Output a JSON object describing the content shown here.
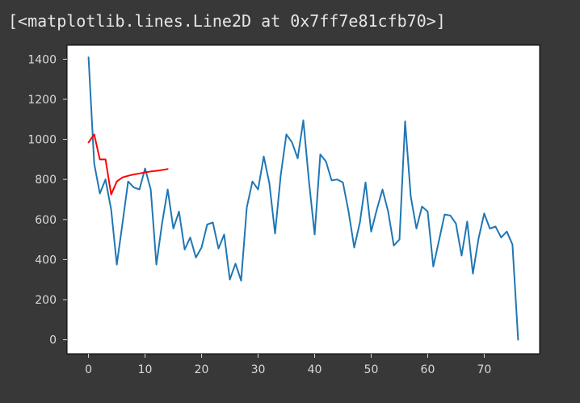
{
  "cell_output": {
    "text": "[<matplotlib.lines.Line2D at 0x7ff7e81cfb70>]"
  },
  "colors": {
    "page_background": "#383838",
    "plot_background": "#ffffff",
    "series_main": "#1f77b4",
    "series_overlay": "#ff0000",
    "tick_label": "#d9d9d9"
  },
  "chart_data": {
    "type": "line",
    "title": "",
    "xlabel": "",
    "ylabel": "",
    "xlim": [
      -3.8,
      79.8
    ],
    "ylim": [
      -70,
      1470
    ],
    "grid": false,
    "legend": "none",
    "xticks": [
      0,
      10,
      20,
      30,
      40,
      50,
      60,
      70
    ],
    "xtick_labels": [
      "0",
      "10",
      "20",
      "30",
      "40",
      "50",
      "60",
      "70"
    ],
    "yticks": [
      0,
      200,
      400,
      600,
      800,
      1000,
      1200,
      1400
    ],
    "ytick_labels": [
      "0",
      "200",
      "400",
      "600",
      "800",
      "1000",
      "1200",
      "1400"
    ],
    "series": [
      {
        "color": "#1f77b4",
        "x": [
          0,
          1,
          2,
          3,
          4,
          5,
          6,
          7,
          8,
          9,
          10,
          11,
          12,
          13,
          14,
          15,
          16,
          17,
          18,
          19,
          20,
          21,
          22,
          23,
          24,
          25,
          26,
          27,
          28,
          29,
          30,
          31,
          32,
          33,
          34,
          35,
          36,
          37,
          38,
          39,
          40,
          41,
          42,
          43,
          44,
          45,
          46,
          47,
          48,
          49,
          50,
          51,
          52,
          53,
          54,
          55,
          56,
          57,
          58,
          59,
          60,
          61,
          62,
          63,
          64,
          65,
          66,
          67,
          68,
          69,
          70,
          71,
          72,
          73,
          74,
          75,
          76
        ],
        "y": [
          1410,
          880,
          730,
          800,
          650,
          375,
          580,
          790,
          760,
          750,
          855,
          750,
          375,
          580,
          750,
          555,
          640,
          450,
          510,
          410,
          460,
          575,
          585,
          455,
          525,
          300,
          380,
          295,
          660,
          790,
          750,
          915,
          780,
          530,
          820,
          1025,
          985,
          905,
          1095,
          790,
          525,
          925,
          890,
          795,
          800,
          785,
          640,
          460,
          585,
          785,
          540,
          650,
          750,
          640,
          470,
          500,
          1090,
          715,
          555,
          665,
          640,
          365,
          495,
          625,
          620,
          580,
          420,
          590,
          330,
          505,
          630,
          555,
          565,
          510,
          540,
          475,
          0
        ]
      },
      {
        "color": "#ff0000",
        "x": [
          0,
          1,
          2,
          3,
          4,
          5,
          6,
          7,
          8,
          9,
          10,
          11,
          12,
          13,
          14
        ],
        "y": [
          985,
          1025,
          900,
          900,
          725,
          790,
          810,
          818,
          825,
          830,
          835,
          840,
          843,
          847,
          852
        ]
      }
    ]
  }
}
